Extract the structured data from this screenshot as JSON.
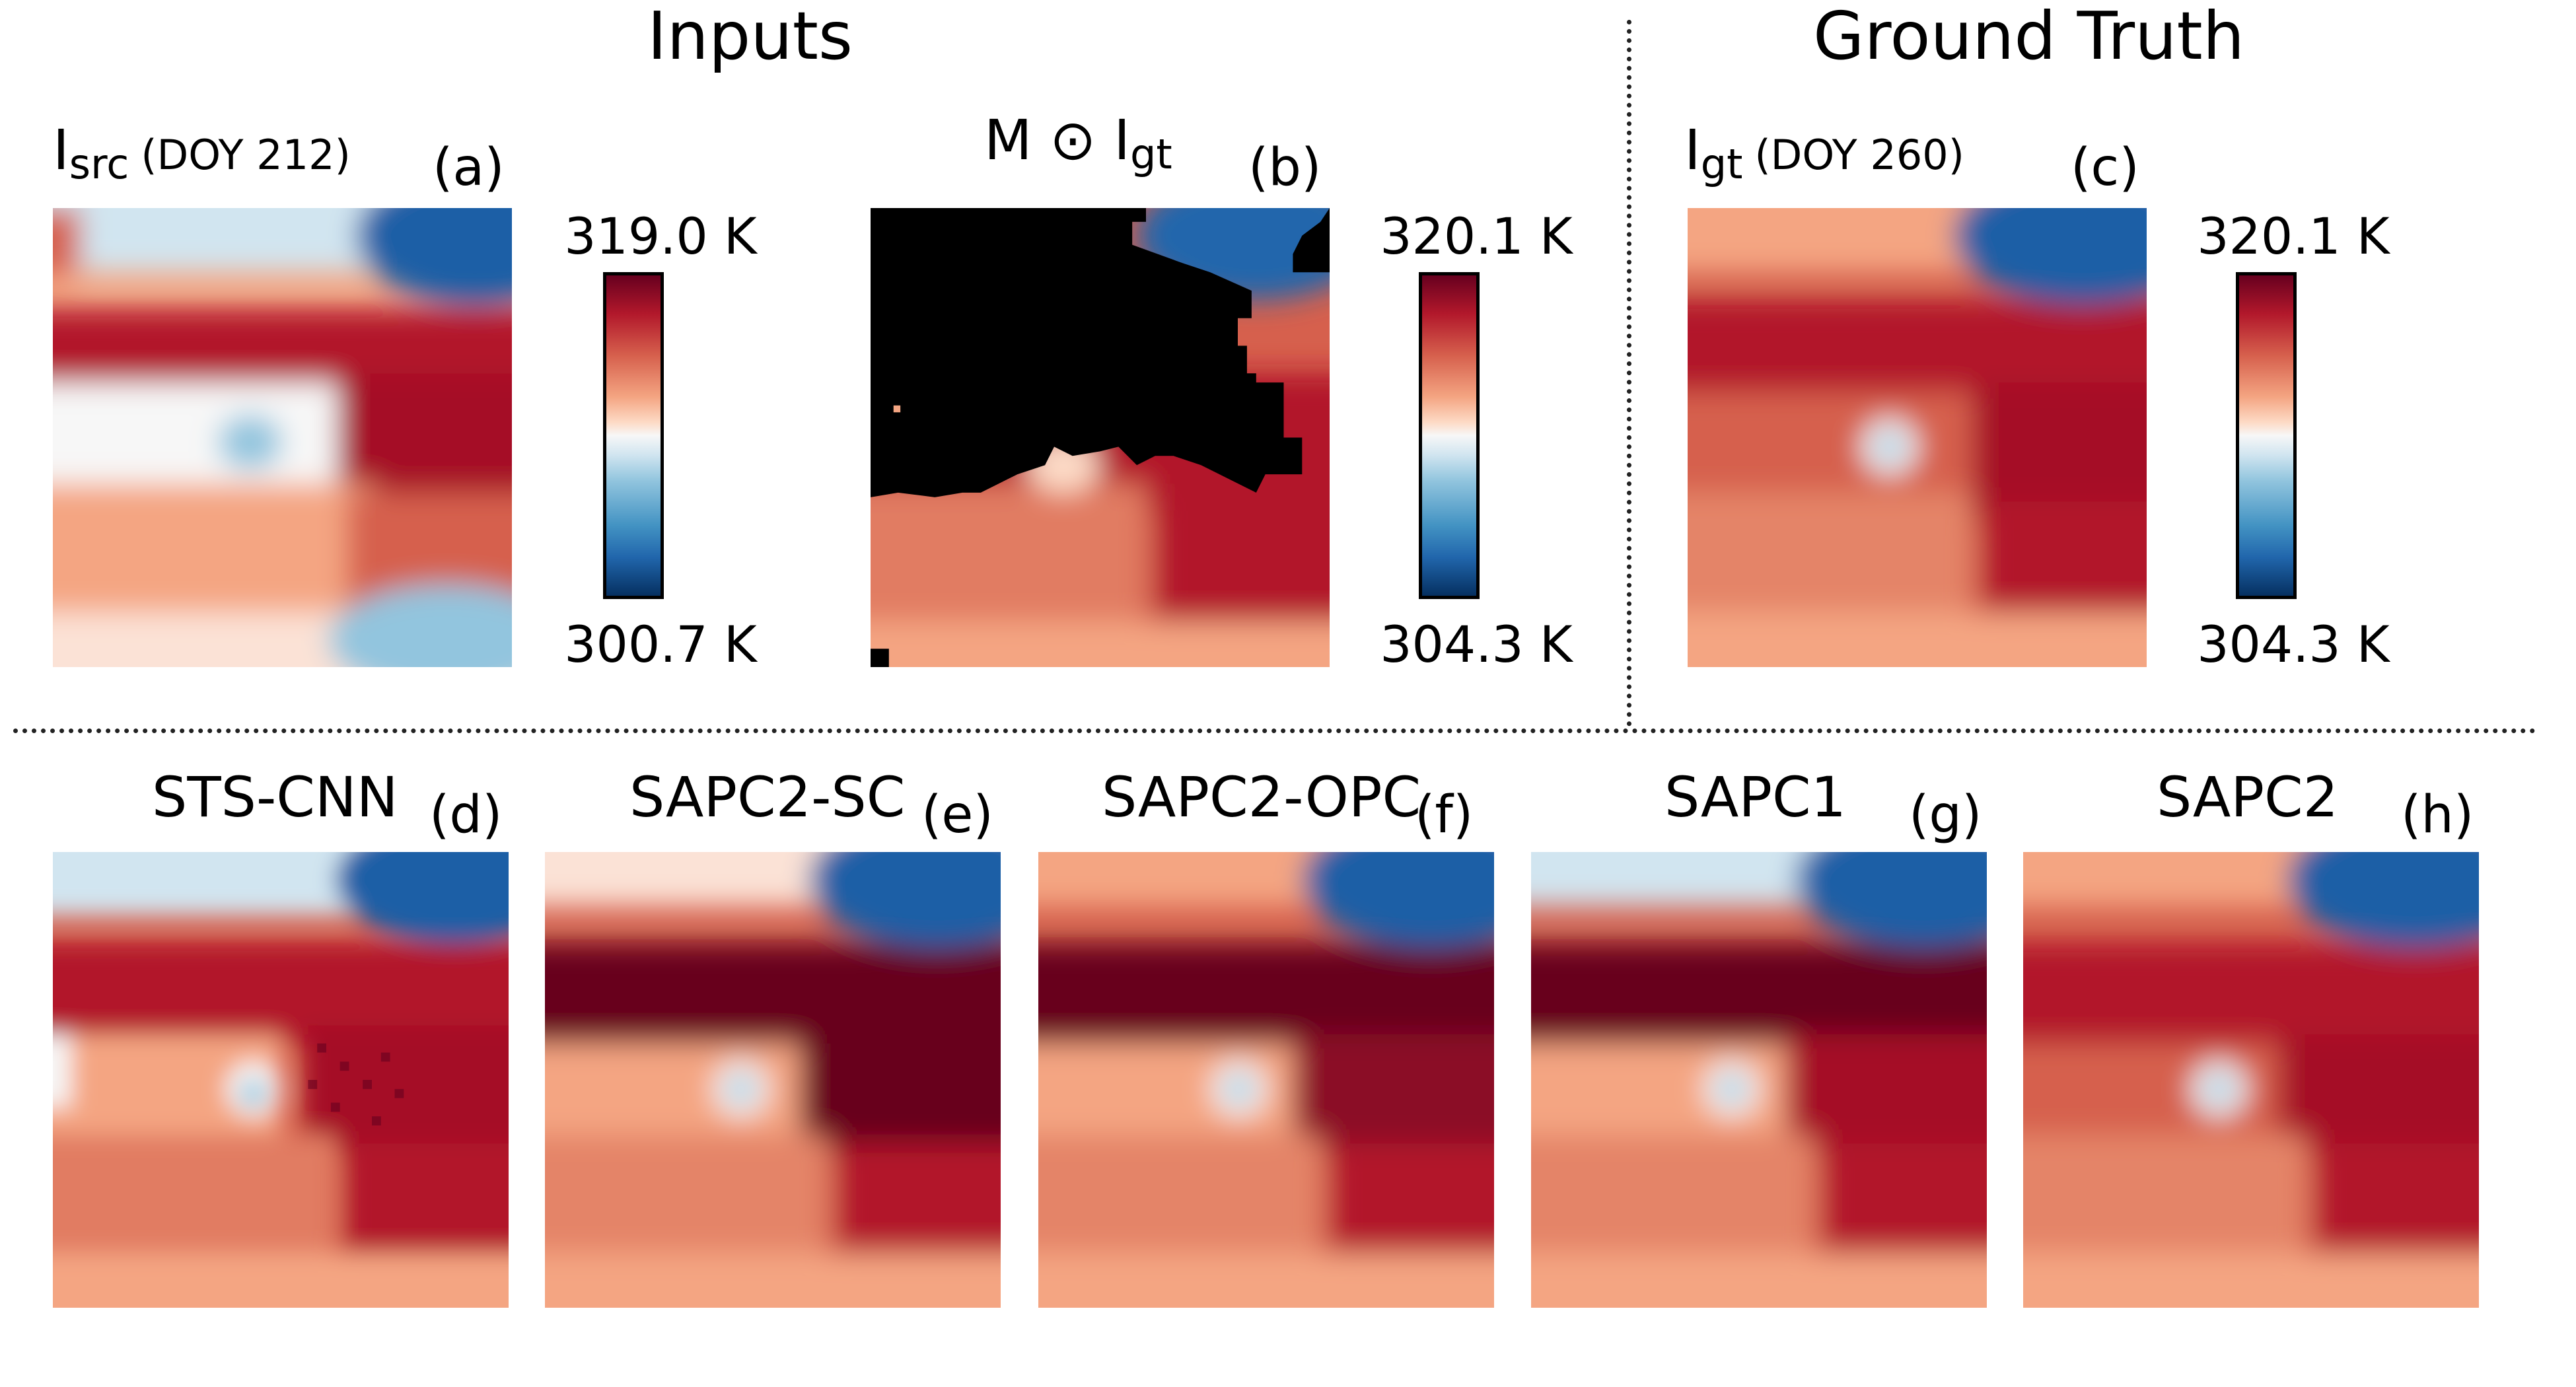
{
  "headings": {
    "inputs": "Inputs",
    "ground_truth": "Ground Truth"
  },
  "panels": {
    "a": {
      "sym": "I",
      "sub": "src",
      "doy": "(DOY 212)",
      "tag": "(a)"
    },
    "b": {
      "pre": "M ⊙ ",
      "sym": "I",
      "sub": "gt",
      "tag": "(b)"
    },
    "c": {
      "sym": "I",
      "sub": "gt",
      "doy": "(DOY 260)",
      "tag": "(c)"
    },
    "d": {
      "label": "STS-CNN",
      "tag": "(d)"
    },
    "e": {
      "label": "SAPC2-SC",
      "tag": "(e)"
    },
    "f": {
      "label": "SAPC2-OPC",
      "tag": "(f)"
    },
    "g": {
      "label": "SAPC1",
      "tag": "(g)"
    },
    "h": {
      "label": "SAPC2",
      "tag": "(h)"
    }
  },
  "colorbars": {
    "a": {
      "max": "319.0 K",
      "min": "300.7 K"
    },
    "b": {
      "max": "320.1 K",
      "min": "304.3 K"
    },
    "c": {
      "max": "320.1 K",
      "min": "304.3 K"
    }
  },
  "colors": {
    "mask": "#000000",
    "darkred": "#67001f",
    "red": "#b2182b",
    "salmon": "#d6604d",
    "peach": "#f4a582",
    "white": "#f7f7f7",
    "lightblue": "#92c5de",
    "blue": "#2166ac",
    "darkblue": "#053061"
  }
}
